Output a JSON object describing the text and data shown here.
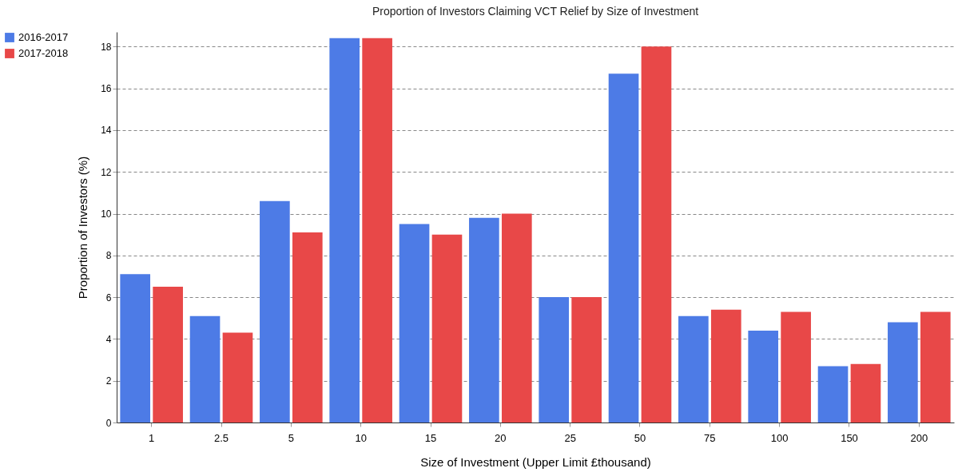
{
  "chart_data": {
    "type": "bar",
    "title": "Proportion of Investors Claiming VCT Relief by Size of Investment",
    "xlabel": "Size of Investment (Upper Limit £thousand)",
    "ylabel": "Proportion of Investors (%)",
    "categories": [
      "1",
      "2.5",
      "5",
      "10",
      "15",
      "20",
      "25",
      "50",
      "75",
      "100",
      "150",
      "200"
    ],
    "series": [
      {
        "name": "2016-2017",
        "color": "#4d7be6",
        "values": [
          7.1,
          5.1,
          10.6,
          18.4,
          9.5,
          9.8,
          6.0,
          16.7,
          5.1,
          4.4,
          2.7,
          4.8
        ]
      },
      {
        "name": "2017-2018",
        "color": "#e84848",
        "values": [
          6.5,
          4.3,
          9.1,
          18.4,
          9.0,
          10.0,
          6.0,
          18.0,
          5.4,
          5.3,
          2.8,
          5.3
        ]
      }
    ],
    "ylim": [
      0,
      18.7
    ],
    "yticks": [
      0,
      2,
      4,
      6,
      8,
      10,
      12,
      14,
      16,
      18
    ],
    "grid": "y",
    "legend": "top left"
  }
}
